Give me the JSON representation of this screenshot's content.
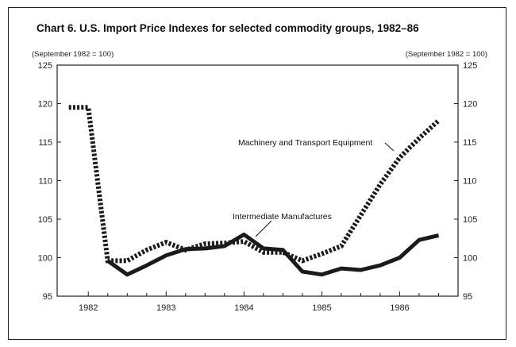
{
  "chart_data": {
    "type": "line",
    "title": "Chart 6.  U.S. Import Price Indexes for selected commodity groups, 1982–86",
    "ylabel_left": "(September 1982 = 100)",
    "ylabel_right": "(September 1982 = 100)",
    "ylim": [
      95,
      125
    ],
    "yticks": [
      95,
      100,
      105,
      110,
      115,
      120,
      125
    ],
    "xlim": [
      1981.6,
      1986.75
    ],
    "xticks": [
      {
        "value": 1982.0,
        "label": "1982"
      },
      {
        "value": 1983.0,
        "label": "1983"
      },
      {
        "value": 1984.0,
        "label": "1984"
      },
      {
        "value": 1985.0,
        "label": "1985"
      },
      {
        "value": 1986.0,
        "label": "1986"
      }
    ],
    "grid": false,
    "legend": "none (series labeled directly)",
    "series": [
      {
        "name": "Machinery and Transport Equipment",
        "style": "dotted",
        "color": "#1a1a1a",
        "x": [
          1981.75,
          1982.0,
          1982.25,
          1982.5,
          1982.75,
          1983.0,
          1983.25,
          1983.5,
          1983.75,
          1984.0,
          1984.25,
          1984.5,
          1984.75,
          1985.0,
          1985.25,
          1985.5,
          1985.75,
          1986.0,
          1986.25,
          1986.5
        ],
        "values": [
          119.5,
          119.5,
          99.6,
          99.6,
          101.0,
          102.0,
          101.0,
          101.8,
          101.9,
          102.1,
          100.7,
          100.7,
          99.6,
          100.5,
          101.5,
          105.5,
          109.5,
          113.0,
          115.5,
          117.8
        ]
      },
      {
        "name": "Intermediate Manufactures",
        "style": "solid",
        "color": "#1a1a1a",
        "x": [
          1982.25,
          1982.5,
          1982.75,
          1983.0,
          1983.25,
          1983.5,
          1983.75,
          1984.0,
          1984.25,
          1984.5,
          1984.75,
          1985.0,
          1985.25,
          1985.5,
          1985.75,
          1986.0,
          1986.25,
          1986.5
        ],
        "values": [
          99.6,
          97.8,
          99.0,
          100.3,
          101.1,
          101.2,
          101.5,
          103.0,
          101.2,
          101.0,
          98.2,
          97.8,
          98.6,
          98.4,
          99.0,
          100.0,
          102.3,
          102.9
        ]
      }
    ],
    "annotations": [
      {
        "text": "Machinery and Transport Equipment",
        "series": 0
      },
      {
        "text": "Intermediate Manufactures",
        "series": 1
      }
    ]
  }
}
